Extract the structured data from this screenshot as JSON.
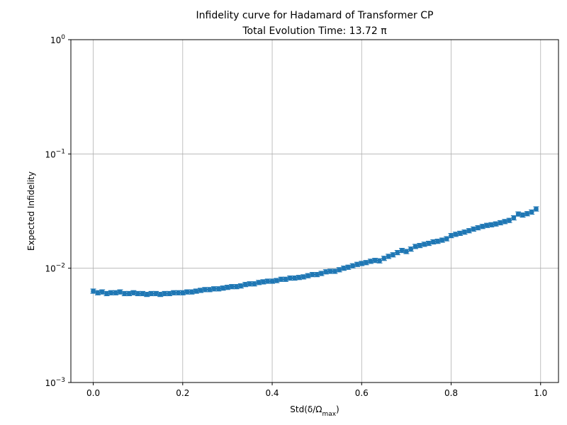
{
  "chart_data": {
    "type": "scatter",
    "title": "Infidelity curve for Hadamard of Transformer CP",
    "subtitle": "Total Evolution Time: 13.72 π",
    "xlabel": "Std(δ/Ω",
    "xlabel_sub": "max",
    "xlabel_close": ")",
    "ylabel": "Expected Infidelity",
    "xlim": [
      -0.05,
      1.04
    ],
    "ylim": [
      0.001,
      1
    ],
    "yscale": "log",
    "grid": true,
    "marker_color": "#1f77b4",
    "x_ticks": [
      {
        "value": 0.0,
        "label": "0.0"
      },
      {
        "value": 0.2,
        "label": "0.2"
      },
      {
        "value": 0.4,
        "label": "0.4"
      },
      {
        "value": 0.6,
        "label": "0.6"
      },
      {
        "value": 0.8,
        "label": "0.8"
      },
      {
        "value": 1.0,
        "label": "1.0"
      }
    ],
    "y_ticks": [
      {
        "value": 0.001,
        "base": "10",
        "exp": "−3"
      },
      {
        "value": 0.01,
        "base": "10",
        "exp": "−2"
      },
      {
        "value": 0.1,
        "base": "10",
        "exp": "−1"
      },
      {
        "value": 1,
        "base": "10",
        "exp": "0"
      }
    ],
    "series": [
      {
        "x": [
          0.0,
          0.01,
          0.02,
          0.03,
          0.04,
          0.05,
          0.06,
          0.07,
          0.08,
          0.09,
          0.1,
          0.11,
          0.12,
          0.13,
          0.14,
          0.15,
          0.16,
          0.17,
          0.18,
          0.19,
          0.2,
          0.21,
          0.22,
          0.23,
          0.24,
          0.25,
          0.26,
          0.27,
          0.28,
          0.29,
          0.3,
          0.31,
          0.32,
          0.33,
          0.34,
          0.35,
          0.36,
          0.37,
          0.38,
          0.39,
          0.4,
          0.41,
          0.42,
          0.43,
          0.44,
          0.45,
          0.46,
          0.47,
          0.48,
          0.49,
          0.5,
          0.51,
          0.52,
          0.53,
          0.54,
          0.55,
          0.56,
          0.57,
          0.58,
          0.59,
          0.6,
          0.61,
          0.62,
          0.63,
          0.64,
          0.65,
          0.66,
          0.67,
          0.68,
          0.69,
          0.7,
          0.71,
          0.72,
          0.73,
          0.74,
          0.75,
          0.76,
          0.77,
          0.78,
          0.79,
          0.8,
          0.81,
          0.82,
          0.83,
          0.84,
          0.85,
          0.86,
          0.87,
          0.88,
          0.89,
          0.9,
          0.91,
          0.92,
          0.93,
          0.94,
          0.95,
          0.96,
          0.97,
          0.98,
          0.99
        ],
        "y": [
          0.0063,
          0.0061,
          0.0062,
          0.006,
          0.0061,
          0.0061,
          0.0062,
          0.006,
          0.006,
          0.0061,
          0.006,
          0.006,
          0.0059,
          0.006,
          0.006,
          0.0059,
          0.006,
          0.006,
          0.0061,
          0.0061,
          0.0061,
          0.0062,
          0.0062,
          0.0063,
          0.0064,
          0.0065,
          0.0065,
          0.0066,
          0.0066,
          0.0067,
          0.0068,
          0.0069,
          0.0069,
          0.007,
          0.0072,
          0.0073,
          0.0073,
          0.0075,
          0.0076,
          0.0077,
          0.0077,
          0.0078,
          0.008,
          0.008,
          0.0082,
          0.0082,
          0.0083,
          0.0084,
          0.0086,
          0.0088,
          0.0088,
          0.009,
          0.0093,
          0.0094,
          0.0094,
          0.0097,
          0.01,
          0.0102,
          0.0105,
          0.0108,
          0.011,
          0.0112,
          0.0115,
          0.0117,
          0.0116,
          0.0122,
          0.0127,
          0.0131,
          0.0137,
          0.0143,
          0.014,
          0.0147,
          0.0155,
          0.0158,
          0.0162,
          0.0165,
          0.017,
          0.0172,
          0.0176,
          0.0181,
          0.0193,
          0.0198,
          0.0202,
          0.0207,
          0.0213,
          0.022,
          0.0226,
          0.0232,
          0.0237,
          0.024,
          0.0244,
          0.025,
          0.0256,
          0.0262,
          0.0276,
          0.0298,
          0.0292,
          0.03,
          0.031,
          0.033
        ]
      }
    ]
  }
}
